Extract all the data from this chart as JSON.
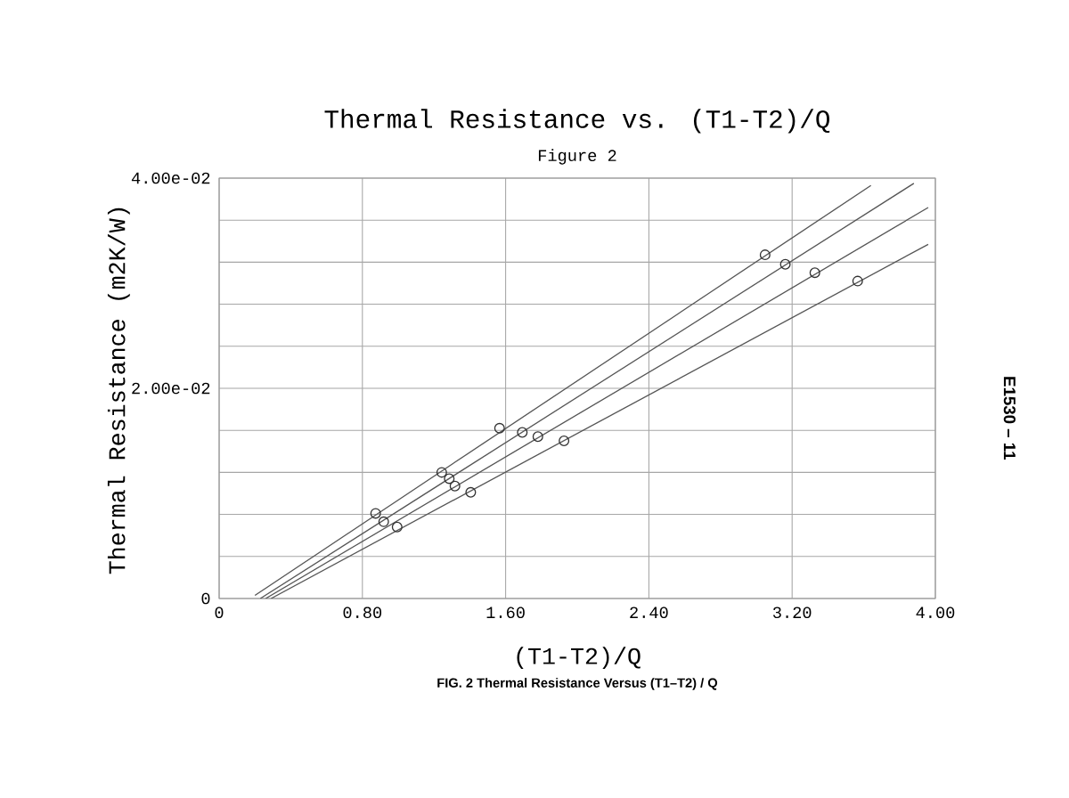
{
  "chart_data": {
    "type": "scatter",
    "title": "Thermal Resistance vs. (T1-T2)/Q",
    "subtitle": "Figure 2",
    "xlabel": "(T1-T2)/Q",
    "ylabel": "Thermal Resistance (m2K/W)",
    "annotations": [
      "FIG. 2 Thermal Resistance Versus (T1–T2) / Q",
      "E1530 – 11"
    ],
    "xlim": [
      0,
      4
    ],
    "ylim": [
      0,
      0.04
    ],
    "xticks": [
      0,
      {
        "value": 0.8,
        "label": "0.80"
      },
      {
        "value": 1.6,
        "label": "1.60"
      },
      {
        "value": 2.4,
        "label": "2.40"
      },
      {
        "value": 3.2,
        "label": "3.20"
      },
      {
        "value": 4,
        "label": "4.00"
      }
    ],
    "yticks": [
      0,
      {
        "value": 0.004,
        "label": null
      },
      {
        "value": 0.008,
        "label": null
      },
      {
        "value": 0.012,
        "label": null
      },
      {
        "value": 0.016,
        "label": null
      },
      {
        "value": 0.02,
        "label": "2.00e-02"
      },
      {
        "value": 0.024,
        "label": null
      },
      {
        "value": 0.028,
        "label": null
      },
      {
        "value": 0.032,
        "label": null
      },
      {
        "value": 0.036,
        "label": null
      },
      {
        "value": 0.04,
        "label": "4.00e-02"
      }
    ],
    "grid": true,
    "series": [
      {
        "marker": "circle",
        "color": "#333333",
        "x": [
          0.874,
          0.919,
          0.994,
          1.243,
          1.285,
          1.317,
          1.405,
          1.566,
          1.693,
          1.78,
          1.926,
          3.049,
          3.162,
          3.327,
          3.566
        ],
        "values": [
          0.0081,
          0.0073,
          0.0068,
          0.012,
          0.0114,
          0.0107,
          0.0101,
          0.0162,
          0.0158,
          0.0154,
          0.015,
          0.0327,
          0.0318,
          0.031,
          0.0302
        ]
      },
      {
        "type": "line",
        "color": "#555555",
        "x": [
          0.2,
          3.64
        ],
        "values": [
          0.0003,
          0.0393
        ]
      },
      {
        "type": "line",
        "color": "#555555",
        "x": [
          0.23,
          3.88
        ],
        "values": [
          0,
          0.0395
        ]
      },
      {
        "type": "line",
        "color": "#555555",
        "x": [
          0.26,
          3.96
        ],
        "values": [
          0,
          0.0372
        ]
      },
      {
        "type": "line",
        "color": "#555555",
        "x": [
          0.29,
          3.96
        ],
        "values": [
          0,
          0.0337
        ]
      }
    ]
  }
}
